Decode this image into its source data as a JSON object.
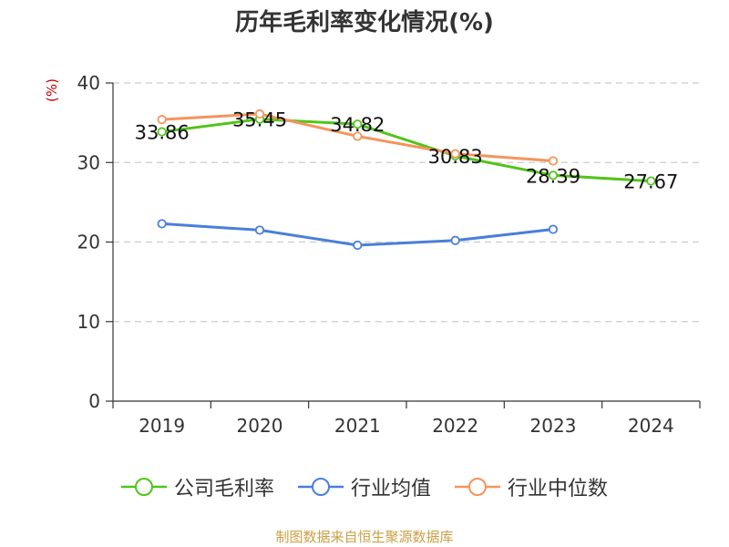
{
  "chart_data": {
    "type": "line",
    "title": "历年毛利率变化情况(%)",
    "ylabel": "(%)",
    "categories": [
      "2019",
      "2020",
      "2021",
      "2022",
      "2023",
      "2024"
    ],
    "ylim": [
      0,
      40
    ],
    "yticks": [
      0,
      10,
      20,
      30,
      40
    ],
    "grid": true,
    "legend_position": "bottom",
    "series": [
      {
        "name": "公司毛利率",
        "color": "#52c41a",
        "values": [
          33.86,
          35.45,
          34.82,
          30.83,
          28.39,
          27.67
        ],
        "labels": [
          "33.86",
          "35.45",
          "34.82",
          "30.83",
          "28.39",
          "27.67"
        ]
      },
      {
        "name": "行业均值",
        "color": "#4a7fd9",
        "values": [
          22.3,
          21.5,
          19.6,
          20.2,
          21.6,
          null
        ]
      },
      {
        "name": "行业中位数",
        "color": "#f5945c",
        "values": [
          35.4,
          36.1,
          33.3,
          31.1,
          30.2,
          null
        ]
      }
    ]
  },
  "source": "制图数据来自恒生聚源数据库"
}
